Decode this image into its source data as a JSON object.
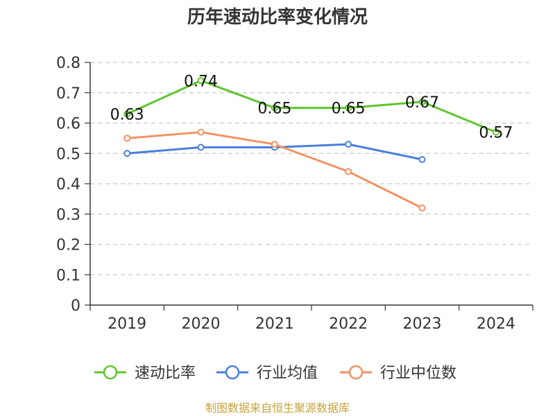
{
  "chart_data": {
    "type": "line",
    "title": "历年速动比率变化情况",
    "categories": [
      "2019",
      "2020",
      "2021",
      "2022",
      "2023",
      "2024"
    ],
    "ylim": [
      0,
      0.8
    ],
    "yticks": [
      "0",
      "0.1",
      "0.2",
      "0.3",
      "0.4",
      "0.5",
      "0.6",
      "0.7",
      "0.8"
    ],
    "grid": true,
    "legend_position": "bottom",
    "series": [
      {
        "name": "速动比率",
        "color": "#5ec52e",
        "values": [
          0.63,
          0.74,
          0.65,
          0.65,
          0.67,
          0.57
        ],
        "labels": [
          "0.63",
          "0.74",
          "0.65",
          "0.65",
          "0.67",
          "0.57"
        ]
      },
      {
        "name": "行业均值",
        "color": "#4a7fdc",
        "values": [
          0.5,
          0.52,
          0.52,
          0.53,
          0.48,
          null
        ]
      },
      {
        "name": "行业中位数",
        "color": "#f39262",
        "values": [
          0.55,
          0.57,
          0.53,
          0.44,
          0.32,
          null
        ]
      }
    ],
    "source": "制图数据来自恒生聚源数据库"
  }
}
